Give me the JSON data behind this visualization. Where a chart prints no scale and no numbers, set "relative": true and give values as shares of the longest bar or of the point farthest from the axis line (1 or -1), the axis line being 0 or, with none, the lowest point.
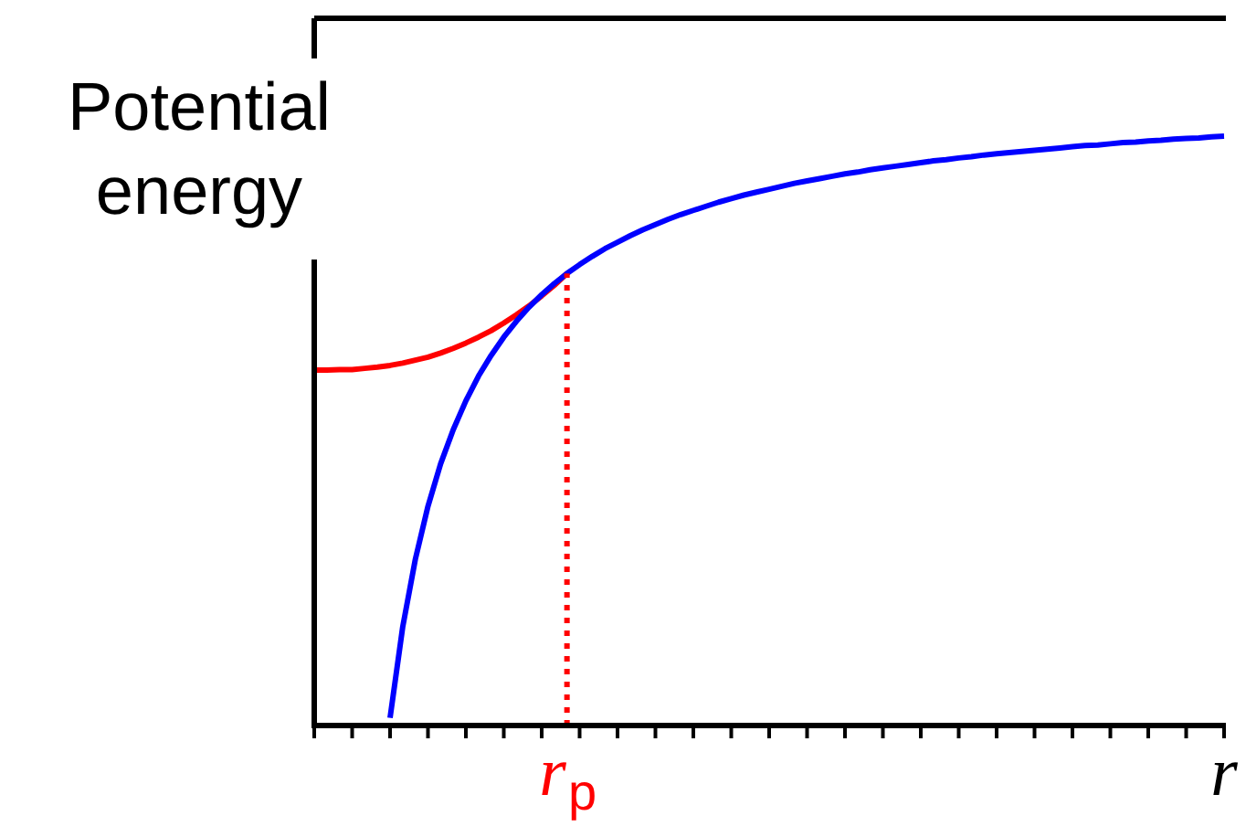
{
  "chart_data": {
    "type": "line",
    "ylabel": "Potential energy",
    "relative": true,
    "tick_labels": "x",
    "marker": "none",
    "legend": false,
    "categories": [
      null,
      null,
      null,
      null,
      null,
      null,
      null,
      null,
      null,
      null,
      null,
      null,
      null,
      null,
      null,
      null,
      null,
      null,
      null,
      null,
      "r$_{p}$",
      null,
      null,
      null,
      null,
      null,
      null,
      null,
      null,
      null,
      null,
      null,
      null,
      null,
      null,
      null,
      null,
      null,
      null,
      null,
      null,
      null,
      null,
      null,
      null,
      null,
      null,
      null,
      null,
      null,
      null,
      null,
      null,
      null,
      null,
      null,
      null,
      null,
      null,
      null,
      null,
      null,
      null,
      null,
      null,
      null,
      null,
      null,
      null,
      null,
      null,
      null,
      "r"
    ],
    "series": [
      {
        "color": "#0000ff",
        "values": [
          null,
          null,
          null,
          null,
          null,
          null,
          0.013,
          0.167,
          0.282,
          0.372,
          0.444,
          0.502,
          0.551,
          0.593,
          0.628,
          0.659,
          0.686,
          0.71,
          0.731,
          0.75,
          0.767,
          0.782,
          0.796,
          0.809,
          0.82,
          0.831,
          0.841,
          0.85,
          0.859,
          0.867,
          0.874,
          0.881,
          0.888,
          0.894,
          0.9,
          0.905,
          0.91,
          0.915,
          0.92,
          0.924,
          0.928,
          0.932,
          0.936,
          0.939,
          0.943,
          0.946,
          0.949,
          0.952,
          0.955,
          0.958,
          0.96,
          0.963,
          0.965,
          0.968,
          0.97,
          0.972,
          0.974,
          0.976,
          0.978,
          0.98,
          0.982,
          0.984,
          0.985,
          0.987,
          0.989,
          0.99,
          0.992,
          0.993,
          0.995,
          0.996,
          0.997,
          0.999,
          1.0
        ]
      },
      {
        "color": "#ff0000",
        "values": [
          0.603,
          0.603,
          0.604,
          0.604,
          0.606,
          0.608,
          0.611,
          0.615,
          0.62,
          0.625,
          0.632,
          0.64,
          0.649,
          0.659,
          0.67,
          0.683,
          0.697,
          0.712,
          0.729,
          0.747,
          0.767,
          null,
          null,
          null,
          null,
          null,
          null,
          null,
          null,
          null,
          null,
          null,
          null,
          null,
          null,
          null,
          null,
          null,
          null,
          null,
          null,
          null,
          null,
          null,
          null,
          null,
          null,
          null,
          null,
          null,
          null,
          null,
          null,
          null,
          null,
          null,
          null,
          null,
          null,
          null,
          null,
          null,
          null,
          null,
          null,
          null,
          null,
          null,
          null,
          null,
          null,
          null,
          null
        ]
      }
    ],
    "ref_lines": [
      {
        "axis": "x",
        "value": "r$_{p}$",
        "color": "#ff0000",
        "line_style": "dotted"
      }
    ]
  }
}
